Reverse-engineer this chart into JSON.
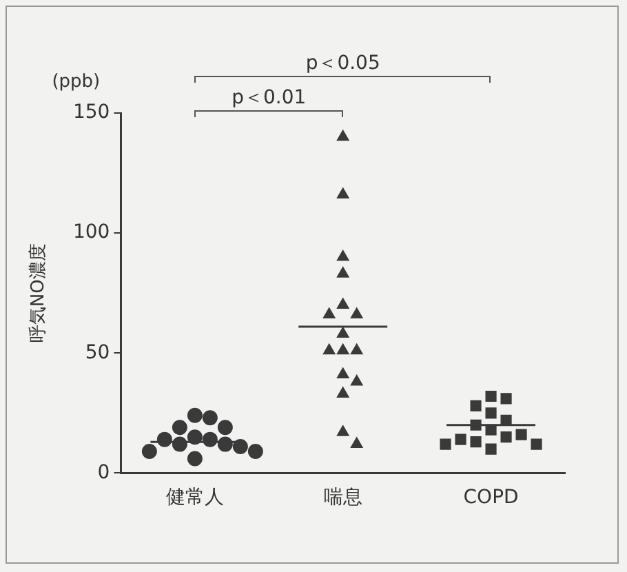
{
  "chart_data": {
    "type": "scatter",
    "subtitle": "(ppb)",
    "ylabel": "呼気NO濃度",
    "categories": [
      "健常人",
      "喘息",
      "COPD"
    ],
    "series": [
      {
        "marker": "circle",
        "color": "#3a3a3a",
        "x": [
          "健常人",
          "健常人",
          "健常人",
          "健常人",
          "健常人",
          "健常人",
          "健常人",
          "健常人",
          "健常人",
          "健常人",
          "健常人",
          "健常人",
          "健常人"
        ],
        "values": [
          24,
          23,
          19,
          19,
          15,
          14,
          14,
          12,
          12,
          11,
          9,
          9,
          6
        ]
      },
      {
        "marker": "triangle",
        "color": "#3a3a3a",
        "x": [
          "喘息",
          "喘息",
          "喘息",
          "喘息",
          "喘息",
          "喘息",
          "喘息",
          "喘息",
          "喘息",
          "喘息",
          "喘息",
          "喘息",
          "喘息",
          "喘息",
          "喘息",
          "喘息"
        ],
        "values": [
          140,
          116,
          90,
          83,
          70,
          66,
          66,
          58,
          51,
          51,
          51,
          41,
          38,
          33,
          17,
          12
        ]
      },
      {
        "marker": "square",
        "color": "#3a3a3a",
        "x": [
          "COPD",
          "COPD",
          "COPD",
          "COPD",
          "COPD",
          "COPD",
          "COPD",
          "COPD",
          "COPD",
          "COPD",
          "COPD",
          "COPD",
          "COPD",
          "COPD"
        ],
        "values": [
          32,
          31,
          28,
          25,
          22,
          20,
          18,
          16,
          15,
          14,
          13,
          12,
          12,
          10
        ]
      }
    ],
    "ref_lines": [
      {
        "axis": "y",
        "value": 13,
        "color": "#3a3a3a"
      },
      {
        "axis": "y",
        "value": 61,
        "color": "#3a3a3a"
      },
      {
        "axis": "y",
        "value": 20,
        "color": "#3a3a3a"
      }
    ],
    "ylim": [
      0,
      150
    ],
    "yticks": [
      0,
      50,
      100,
      150
    ],
    "grid": false,
    "legend": false,
    "annotations": [
      "p＜0.01",
      "p＜0.05"
    ]
  }
}
